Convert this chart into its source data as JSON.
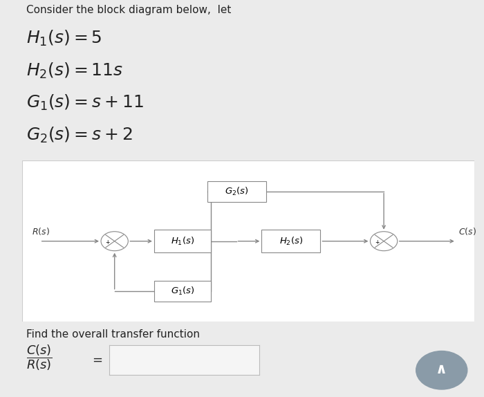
{
  "bg_color": "#ebebeb",
  "text_color": "#222222",
  "header_text": "Consider the block diagram below,  let",
  "equations": [
    "$H_1(s) = 5$",
    "$H_2(s) = 11s$",
    "$G_1(s) = s + 11$",
    "$G_2(s) = s + 2$"
  ],
  "footer_text": "Find the overall transfer function",
  "diagram_bg": "#ffffff",
  "box_color": "#ffffff",
  "box_edge": "#888888",
  "circle_color": "#ffffff",
  "circle_edge": "#888888",
  "arrow_color": "#888888",
  "labels": {
    "Rs": "$R(s)$",
    "Cs": "$C(s)$",
    "H1": "$H_1(s)$",
    "H2": "$H_2(s)$",
    "G1": "$G_1(s)$",
    "G2": "$G_2(s)$"
  },
  "btn_color": "#8a9ba8",
  "input_box_color": "#f5f5f5",
  "input_box_edge": "#bbbbbb"
}
